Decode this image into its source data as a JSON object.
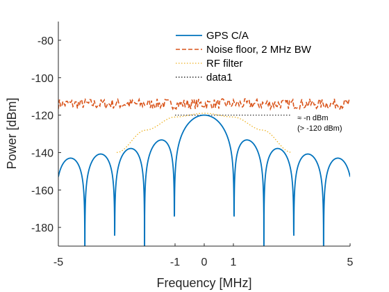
{
  "chart_data": {
    "type": "line",
    "xlabel": "Frequency  [MHz]",
    "ylabel": "Power  [dBm]",
    "xlim": [
      -5,
      5
    ],
    "ylim": [
      -190,
      -70
    ],
    "x_ticks": [
      -5,
      -1,
      0,
      1,
      5
    ],
    "x_tick_labels": [
      "-5",
      "-1",
      "0",
      "1",
      "5"
    ],
    "y_ticks": [
      -180,
      -160,
      -140,
      -120,
      -100,
      -80
    ],
    "y_tick_labels": [
      "-180",
      "-160",
      "-140",
      "-120",
      "-100",
      "-80"
    ],
    "grid": false,
    "legend_position": "top-center",
    "series": [
      {
        "name": "GPS C/A",
        "color": "#0072BD",
        "style": "solid",
        "description": "sinc^2 spectrum, peak -120 dBm at 0 MHz, nulls every 1.023 MHz",
        "peak_dbm": -120,
        "chip_rate_mhz": 1.023
      },
      {
        "name": "Noise floor, 2 MHz BW",
        "color": "#D95319",
        "style": "dashed",
        "mean_dbm": -114,
        "x": [
          -5,
          -4,
          -3,
          -2,
          -1,
          0,
          1,
          2,
          3,
          4,
          5
        ],
        "y": [
          -113,
          -115,
          -113,
          -114,
          -112,
          -114,
          -113,
          -112,
          -115,
          -113,
          -114
        ]
      },
      {
        "name": "RF filter",
        "color": "#EDB120",
        "style": "dotted",
        "x": [
          -3,
          -2,
          -1,
          0,
          1,
          2,
          3
        ],
        "y": [
          -140,
          -128,
          -121,
          -119,
          -121,
          -128,
          -140
        ]
      },
      {
        "name": "data1",
        "color": "#000000",
        "style": "dotted",
        "x": [
          -1,
          3
        ],
        "y": [
          -120,
          -120
        ]
      }
    ],
    "annotation": {
      "line1": "≈ -n dBm",
      "line2": "(> -120 dBm)",
      "x": 3.1,
      "y": -121
    }
  }
}
